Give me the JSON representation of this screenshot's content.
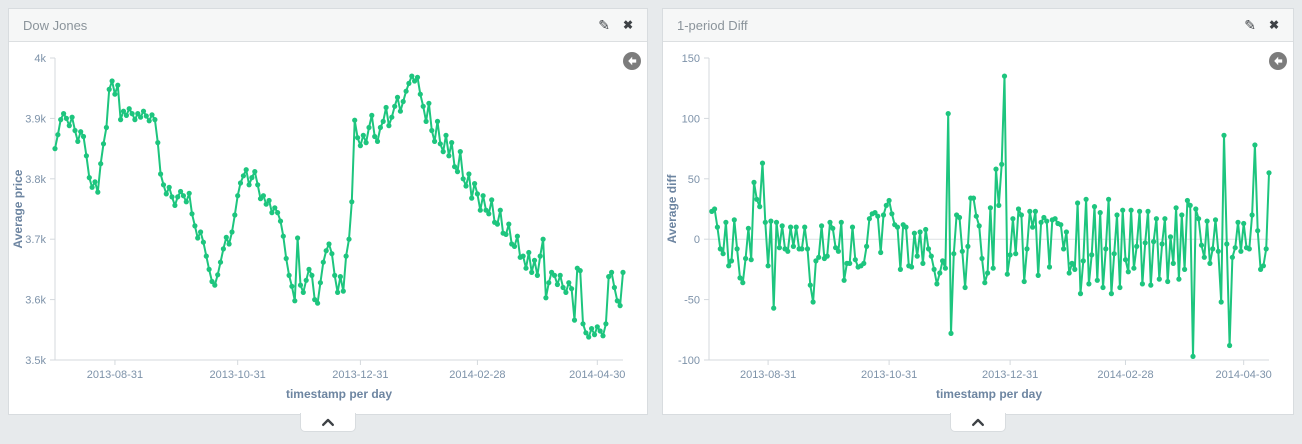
{
  "ui": {
    "edit_glyph": "✎",
    "close_glyph": "✖",
    "icons": {
      "edit": "pencil-icon",
      "close": "close-icon",
      "reset": "arrow-left-icon",
      "collapse": "chevron-up-icon"
    },
    "colors": {
      "page_background": "#e7eaec",
      "panel_border": "#d8dcdf",
      "header_background": "#f6f7f7",
      "title_text": "#8b949b",
      "icon_dark": "#3e4246",
      "reset_circle": "#7c7c7c",
      "axis_line": "#d4d9dd",
      "tick_text": "#7d92a9",
      "axis_title_text": "#6d85a1",
      "zero_line": "#dde1e4",
      "series_green": "#1dc57e"
    }
  },
  "chart_data": [
    {
      "type": "line",
      "title": "Dow Jones",
      "xlabel": "timestamp per day",
      "ylabel": "Average price",
      "legend": "none",
      "grid": "off",
      "line_color": "#1dc57e",
      "ylim": [
        3500,
        4000
      ],
      "yticks": [
        {
          "v": 4000,
          "label": "4k"
        },
        {
          "v": 3900,
          "label": "3.9k"
        },
        {
          "v": 3800,
          "label": "3.8k"
        },
        {
          "v": 3700,
          "label": "3.7k"
        },
        {
          "v": 3600,
          "label": "3.6k"
        },
        {
          "v": 3500,
          "label": "3.5k"
        }
      ],
      "xlim": [
        0,
        199
      ],
      "xticks": [
        {
          "i": 21,
          "label": "2013-08-31"
        },
        {
          "i": 64,
          "label": "2013-10-31"
        },
        {
          "i": 107,
          "label": "2013-12-31"
        },
        {
          "i": 148,
          "label": "2014-02-28"
        },
        {
          "i": 190,
          "label": "2014-04-30"
        }
      ],
      "x_start": 0,
      "values": [
        3850,
        3873,
        3898,
        3908,
        3900,
        3888,
        3902,
        3880,
        3862,
        3878,
        3870,
        3838,
        3802,
        3786,
        3795,
        3778,
        3825,
        3858,
        3885,
        3948,
        3962,
        3940,
        3955,
        3898,
        3912,
        3905,
        3916,
        3908,
        3898,
        3908,
        3902,
        3912,
        3904,
        3896,
        3906,
        3898,
        3860,
        3808,
        3790,
        3775,
        3786,
        3770,
        3756,
        3770,
        3779,
        3772,
        3762,
        3776,
        3742,
        3722,
        3702,
        3712,
        3695,
        3672,
        3650,
        3630,
        3624,
        3641,
        3662,
        3684,
        3703,
        3692,
        3712,
        3740,
        3772,
        3793,
        3805,
        3815,
        3790,
        3802,
        3812,
        3790,
        3767,
        3772,
        3758,
        3764,
        3744,
        3752,
        3744,
        3730,
        3705,
        3668,
        3640,
        3622,
        3598,
        3702,
        3624,
        3612,
        3632,
        3650,
        3640,
        3600,
        3594,
        3628,
        3662,
        3681,
        3692,
        3676,
        3640,
        3612,
        3638,
        3614,
        3672,
        3700,
        3762,
        3897,
        3868,
        3855,
        3872,
        3860,
        3885,
        3905,
        3870,
        3862,
        3885,
        3895,
        3918,
        3888,
        3902,
        3920,
        3935,
        3912,
        3928,
        3945,
        3958,
        3970,
        3962,
        3968,
        3940,
        3920,
        3895,
        3925,
        3880,
        3862,
        3895,
        3858,
        3845,
        3872,
        3838,
        3860,
        3820,
        3812,
        3845,
        3800,
        3788,
        3808,
        3768,
        3792,
        3775,
        3748,
        3772,
        3748,
        3742,
        3765,
        3728,
        3725,
        3748,
        3710,
        3708,
        3725,
        3692,
        3688,
        3705,
        3670,
        3672,
        3652,
        3678,
        3645,
        3665,
        3640,
        3672,
        3700,
        3603,
        3628,
        3645,
        3640,
        3625,
        3640,
        3620,
        3612,
        3628,
        3618,
        3566,
        3652,
        3648,
        3560,
        3545,
        3538,
        3552,
        3542,
        3555,
        3548,
        3540,
        3560,
        3638,
        3645,
        3620,
        3598,
        3590,
        3645
      ]
    },
    {
      "type": "line",
      "title": "1-period Diff",
      "xlabel": "timestamp per day",
      "ylabel": "Average diff",
      "legend": "none",
      "grid": "zero-line-only",
      "line_color": "#1dc57e",
      "ylim": [
        -100,
        150
      ],
      "yticks": [
        {
          "v": 150,
          "label": "150"
        },
        {
          "v": 100,
          "label": "100"
        },
        {
          "v": 50,
          "label": "50"
        },
        {
          "v": 0,
          "label": "0"
        },
        {
          "v": -50,
          "label": "-50"
        },
        {
          "v": -100,
          "label": "-100"
        }
      ],
      "xlim": [
        0,
        199
      ],
      "xticks": [
        {
          "i": 21,
          "label": "2013-08-31"
        },
        {
          "i": 64,
          "label": "2013-10-31"
        },
        {
          "i": 107,
          "label": "2013-12-31"
        },
        {
          "i": 148,
          "label": "2014-02-28"
        },
        {
          "i": 190,
          "label": "2014-04-30"
        }
      ],
      "x_start": 1,
      "values": [
        23,
        25,
        10,
        -8,
        -12,
        14,
        -22,
        -18,
        16,
        -8,
        -32,
        -36,
        -16,
        9,
        -17,
        47,
        33,
        27,
        63,
        14,
        -22,
        15,
        -57,
        14,
        -7,
        11,
        -8,
        -10,
        10,
        -6,
        10,
        -8,
        -8,
        10,
        -8,
        -38,
        -52,
        -18,
        -15,
        11,
        -16,
        -14,
        14,
        9,
        -7,
        -10,
        14,
        -34,
        -20,
        -20,
        10,
        -17,
        -23,
        -22,
        -20,
        -6,
        17,
        21,
        22,
        19,
        -11,
        20,
        28,
        32,
        21,
        12,
        10,
        -25,
        12,
        10,
        -22,
        -23,
        5,
        -14,
        6,
        -20,
        8,
        -8,
        -14,
        -25,
        -37,
        -28,
        -18,
        -24,
        104,
        -78,
        -12,
        20,
        18,
        -10,
        -40,
        -6,
        34,
        34,
        19,
        11,
        -16,
        -36,
        -28,
        26,
        -24,
        58,
        28,
        62,
        135,
        -29,
        -13,
        17,
        -12,
        25,
        20,
        -35,
        -8,
        23,
        10,
        23,
        -30,
        14,
        18,
        15,
        -23,
        16,
        17,
        13,
        12,
        -8,
        6,
        -28,
        -20,
        -25,
        30,
        -45,
        -18,
        33,
        -37,
        -13,
        27,
        -34,
        22,
        -40,
        -8,
        33,
        -45,
        -12,
        20,
        -40,
        24,
        -17,
        -27,
        24,
        -24,
        -6,
        23,
        -37,
        -3,
        23,
        -38,
        -2,
        17,
        -33,
        -4,
        17,
        -35,
        2,
        -20,
        26,
        -33,
        20,
        -25,
        32,
        28,
        -97,
        25,
        17,
        -5,
        -15,
        15,
        -20,
        -8,
        16,
        -10,
        -52,
        86,
        -4,
        -88,
        -15,
        -7,
        14,
        -10,
        13,
        -7,
        -8,
        20,
        78,
        7,
        -25,
        -22,
        -8,
        55
      ]
    }
  ]
}
